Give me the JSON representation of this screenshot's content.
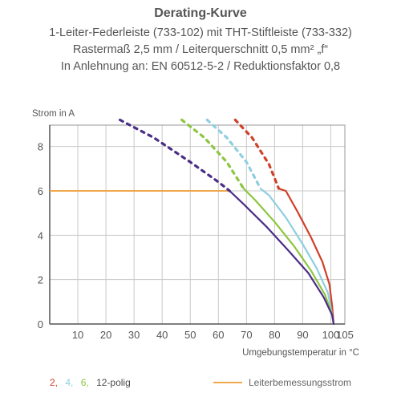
{
  "header": {
    "title": "Derating-Kurve",
    "line1": "1-Leiter-Federleiste (733-102) mit THT-Stiftleiste (733-332)",
    "line2": "Rastermaß 2,5 mm / Leiterquerschnitt 0,5 mm² „f“",
    "line3": "In Anlehnung an: EN 60512-5-2 / Reduktionsfaktor 0,8"
  },
  "chart_data": {
    "type": "line",
    "ylabel": "Strom in A",
    "xlabel": "Umgebungstemperatur in °C",
    "xlim": [
      0,
      105
    ],
    "ylim": [
      0,
      9
    ],
    "x_ticks": [
      "10",
      "20",
      "30",
      "40",
      "50",
      "60",
      "70",
      "80",
      "90",
      "100",
      "105"
    ],
    "y_ticks": [
      "0",
      "2",
      "4",
      "6",
      "8"
    ],
    "grid": true,
    "legend_position": "bottom",
    "series": [
      {
        "name": "2",
        "color": "#d0402a",
        "dashed": [
          [
            66,
            9.2
          ],
          [
            72,
            8.4
          ],
          [
            78,
            7.2
          ],
          [
            81.5,
            6.1
          ]
        ],
        "solid": [
          [
            81.5,
            6.1
          ],
          [
            84,
            6.0
          ],
          [
            88,
            5.1
          ],
          [
            93,
            3.9
          ],
          [
            97,
            2.8
          ],
          [
            99.5,
            1.8
          ],
          [
            100.5,
            0.8
          ],
          [
            101,
            0
          ]
        ]
      },
      {
        "name": "4",
        "color": "#8ecfe0",
        "dashed": [
          [
            56,
            9.2
          ],
          [
            63,
            8.4
          ],
          [
            70,
            7.3
          ],
          [
            75,
            6.1
          ]
        ],
        "solid": [
          [
            75,
            6.1
          ],
          [
            78,
            5.8
          ],
          [
            84,
            4.8
          ],
          [
            90,
            3.6
          ],
          [
            95,
            2.5
          ],
          [
            99,
            1.4
          ],
          [
            100.5,
            0.4
          ],
          [
            101,
            0
          ]
        ]
      },
      {
        "name": "6",
        "color": "#8cc63f",
        "dashed": [
          [
            47,
            9.2
          ],
          [
            55,
            8.4
          ],
          [
            63,
            7.3
          ],
          [
            69,
            6.1
          ]
        ],
        "solid": [
          [
            69,
            6.1
          ],
          [
            73,
            5.6
          ],
          [
            80,
            4.6
          ],
          [
            87,
            3.5
          ],
          [
            93,
            2.4
          ],
          [
            98,
            1.3
          ],
          [
            100.5,
            0.4
          ],
          [
            101,
            0
          ]
        ]
      },
      {
        "name": "12-polig",
        "color": "#4a2d86",
        "dashed": [
          [
            25,
            9.2
          ],
          [
            37,
            8.4
          ],
          [
            50,
            7.3
          ],
          [
            60,
            6.4
          ],
          [
            64,
            6.0
          ]
        ],
        "solid": [
          [
            64,
            6.0
          ],
          [
            69,
            5.4
          ],
          [
            77,
            4.4
          ],
          [
            85,
            3.3
          ],
          [
            92,
            2.3
          ],
          [
            97.5,
            1.2
          ],
          [
            100.5,
            0.4
          ],
          [
            101,
            0
          ]
        ]
      }
    ],
    "reference_line": {
      "name": "Leiterbemessungsstrom",
      "color": "#f0a64a",
      "y": 6
    }
  },
  "legend": {
    "items": [
      {
        "label": "2,",
        "color": "#d0402a"
      },
      {
        "label": "4,",
        "color": "#8ecfe0"
      },
      {
        "label": "6,",
        "color": "#8cc63f"
      },
      {
        "label": "12-polig",
        "color": "#4a2d86"
      }
    ],
    "reference_label": "Leiterbemessungsstrom",
    "reference_color": "#f0a64a"
  }
}
